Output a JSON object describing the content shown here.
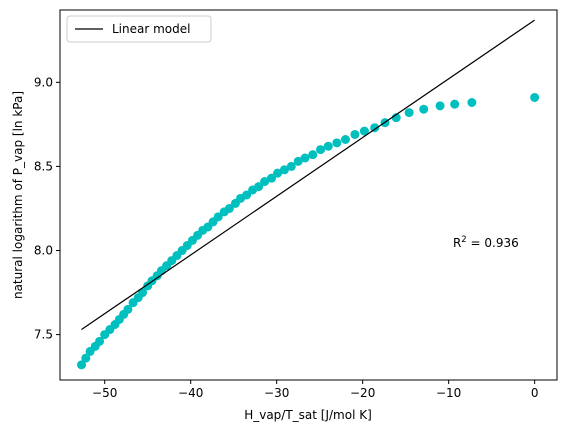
{
  "chart_data": {
    "type": "scatter",
    "xlabel": "H_vap/T_sat [J/mol K]",
    "ylabel": "natural logarithm of P_vap [ln kPa]",
    "xlim": [
      -55.2,
      2.6
    ],
    "ylim": [
      7.23,
      9.43
    ],
    "x_ticks": [
      -50,
      -40,
      -30,
      -20,
      -10,
      0
    ],
    "x_tick_labels": [
      "−50",
      "−40",
      "−30",
      "−20",
      "−10",
      "0"
    ],
    "y_ticks": [
      7.5,
      8.0,
      8.5,
      9.0
    ],
    "y_tick_labels": [
      "7.5",
      "8.0",
      "8.5",
      "9.0"
    ],
    "legend": {
      "position": "top-left",
      "entries": [
        "Linear model"
      ]
    },
    "annotation": {
      "prefix": "R",
      "superscript": "2",
      "suffix": " = 0.936",
      "x": -9.5,
      "y": 8.02
    },
    "grid": false,
    "colors": {
      "points": "#00BFBF",
      "line": "#000000"
    },
    "line": {
      "name": "Linear model",
      "x": [
        -52.7,
        0.0
      ],
      "y": [
        7.53,
        9.37
      ]
    },
    "scatter": {
      "x": [
        -52.7,
        -52.2,
        -51.7,
        -51.1,
        -50.6,
        -50.0,
        -49.4,
        -48.8,
        -48.3,
        -47.8,
        -47.3,
        -46.7,
        -46.1,
        -45.6,
        -45.0,
        -44.5,
        -43.9,
        -43.4,
        -42.8,
        -42.2,
        -41.6,
        -41.0,
        -40.4,
        -39.8,
        -39.2,
        -38.6,
        -38.0,
        -37.4,
        -36.8,
        -36.1,
        -35.5,
        -34.8,
        -34.2,
        -33.5,
        -32.8,
        -32.1,
        -31.4,
        -30.6,
        -29.9,
        -29.1,
        -28.3,
        -27.5,
        -26.7,
        -25.8,
        -24.9,
        -24.0,
        -23.0,
        -22.0,
        -20.9,
        -19.8,
        -18.6,
        -17.4,
        -16.1,
        -14.6,
        -12.9,
        -11.0,
        -9.3,
        -7.3,
        0.0
      ],
      "y": [
        7.32,
        7.36,
        7.4,
        7.43,
        7.46,
        7.5,
        7.53,
        7.56,
        7.59,
        7.62,
        7.65,
        7.69,
        7.72,
        7.75,
        7.79,
        7.82,
        7.85,
        7.88,
        7.91,
        7.94,
        7.97,
        8.0,
        8.03,
        8.06,
        8.09,
        8.12,
        8.14,
        8.17,
        8.2,
        8.23,
        8.25,
        8.28,
        8.31,
        8.33,
        8.36,
        8.38,
        8.41,
        8.43,
        8.46,
        8.48,
        8.5,
        8.53,
        8.55,
        8.57,
        8.6,
        8.62,
        8.64,
        8.66,
        8.69,
        8.71,
        8.73,
        8.76,
        8.79,
        8.82,
        8.84,
        8.86,
        8.87,
        8.88,
        8.91
      ]
    }
  }
}
